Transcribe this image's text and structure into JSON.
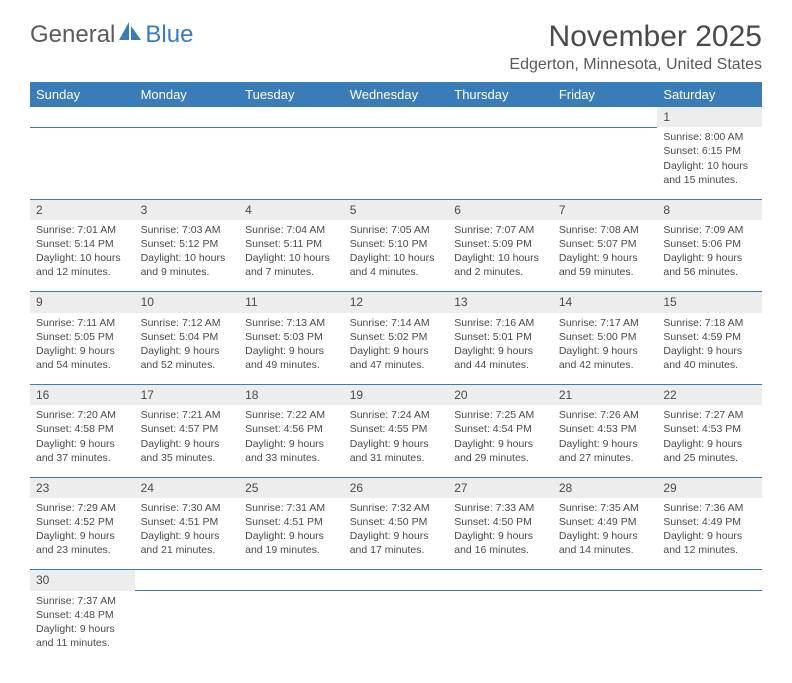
{
  "logo": {
    "part1": "General",
    "part2": "Blue"
  },
  "title": "November 2025",
  "location": "Edgerton, Minnesota, United States",
  "header_bg": "#3a7cb8",
  "header_fg": "#ffffff",
  "daynum_bg": "#ededed",
  "border_color": "#3a7cb8",
  "font_family": "Arial, Helvetica, sans-serif",
  "title_fontsize": 30,
  "location_fontsize": 16,
  "dayheader_fontsize": 13,
  "cell_fontsize": 10.5,
  "columns": [
    "Sunday",
    "Monday",
    "Tuesday",
    "Wednesday",
    "Thursday",
    "Friday",
    "Saturday"
  ],
  "weeks": [
    {
      "nums": [
        "",
        "",
        "",
        "",
        "",
        "",
        "1"
      ],
      "cells": [
        "",
        "",
        "",
        "",
        "",
        "",
        "Sunrise: 8:00 AM\nSunset: 6:15 PM\nDaylight: 10 hours and 15 minutes."
      ]
    },
    {
      "nums": [
        "2",
        "3",
        "4",
        "5",
        "6",
        "7",
        "8"
      ],
      "cells": [
        "Sunrise: 7:01 AM\nSunset: 5:14 PM\nDaylight: 10 hours and 12 minutes.",
        "Sunrise: 7:03 AM\nSunset: 5:12 PM\nDaylight: 10 hours and 9 minutes.",
        "Sunrise: 7:04 AM\nSunset: 5:11 PM\nDaylight: 10 hours and 7 minutes.",
        "Sunrise: 7:05 AM\nSunset: 5:10 PM\nDaylight: 10 hours and 4 minutes.",
        "Sunrise: 7:07 AM\nSunset: 5:09 PM\nDaylight: 10 hours and 2 minutes.",
        "Sunrise: 7:08 AM\nSunset: 5:07 PM\nDaylight: 9 hours and 59 minutes.",
        "Sunrise: 7:09 AM\nSunset: 5:06 PM\nDaylight: 9 hours and 56 minutes."
      ]
    },
    {
      "nums": [
        "9",
        "10",
        "11",
        "12",
        "13",
        "14",
        "15"
      ],
      "cells": [
        "Sunrise: 7:11 AM\nSunset: 5:05 PM\nDaylight: 9 hours and 54 minutes.",
        "Sunrise: 7:12 AM\nSunset: 5:04 PM\nDaylight: 9 hours and 52 minutes.",
        "Sunrise: 7:13 AM\nSunset: 5:03 PM\nDaylight: 9 hours and 49 minutes.",
        "Sunrise: 7:14 AM\nSunset: 5:02 PM\nDaylight: 9 hours and 47 minutes.",
        "Sunrise: 7:16 AM\nSunset: 5:01 PM\nDaylight: 9 hours and 44 minutes.",
        "Sunrise: 7:17 AM\nSunset: 5:00 PM\nDaylight: 9 hours and 42 minutes.",
        "Sunrise: 7:18 AM\nSunset: 4:59 PM\nDaylight: 9 hours and 40 minutes."
      ]
    },
    {
      "nums": [
        "16",
        "17",
        "18",
        "19",
        "20",
        "21",
        "22"
      ],
      "cells": [
        "Sunrise: 7:20 AM\nSunset: 4:58 PM\nDaylight: 9 hours and 37 minutes.",
        "Sunrise: 7:21 AM\nSunset: 4:57 PM\nDaylight: 9 hours and 35 minutes.",
        "Sunrise: 7:22 AM\nSunset: 4:56 PM\nDaylight: 9 hours and 33 minutes.",
        "Sunrise: 7:24 AM\nSunset: 4:55 PM\nDaylight: 9 hours and 31 minutes.",
        "Sunrise: 7:25 AM\nSunset: 4:54 PM\nDaylight: 9 hours and 29 minutes.",
        "Sunrise: 7:26 AM\nSunset: 4:53 PM\nDaylight: 9 hours and 27 minutes.",
        "Sunrise: 7:27 AM\nSunset: 4:53 PM\nDaylight: 9 hours and 25 minutes."
      ]
    },
    {
      "nums": [
        "23",
        "24",
        "25",
        "26",
        "27",
        "28",
        "29"
      ],
      "cells": [
        "Sunrise: 7:29 AM\nSunset: 4:52 PM\nDaylight: 9 hours and 23 minutes.",
        "Sunrise: 7:30 AM\nSunset: 4:51 PM\nDaylight: 9 hours and 21 minutes.",
        "Sunrise: 7:31 AM\nSunset: 4:51 PM\nDaylight: 9 hours and 19 minutes.",
        "Sunrise: 7:32 AM\nSunset: 4:50 PM\nDaylight: 9 hours and 17 minutes.",
        "Sunrise: 7:33 AM\nSunset: 4:50 PM\nDaylight: 9 hours and 16 minutes.",
        "Sunrise: 7:35 AM\nSunset: 4:49 PM\nDaylight: 9 hours and 14 minutes.",
        "Sunrise: 7:36 AM\nSunset: 4:49 PM\nDaylight: 9 hours and 12 minutes."
      ]
    },
    {
      "nums": [
        "30",
        "",
        "",
        "",
        "",
        "",
        ""
      ],
      "cells": [
        "Sunrise: 7:37 AM\nSunset: 4:48 PM\nDaylight: 9 hours and 11 minutes.",
        "",
        "",
        "",
        "",
        "",
        ""
      ]
    }
  ]
}
